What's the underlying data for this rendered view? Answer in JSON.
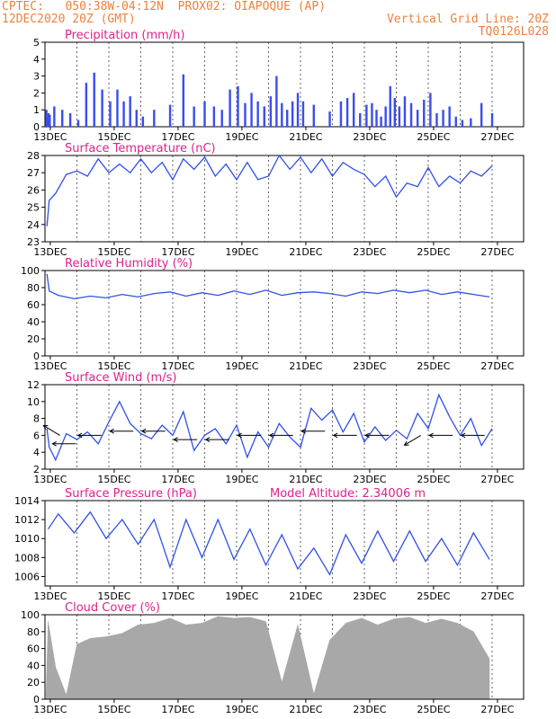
{
  "header": {
    "line1_left": "CPTEC:   050:38W-04:12N  PROX02: OIAPOQUE (AP)",
    "line2_left": "12DEC2020 20Z (GMT)",
    "line2_right": "Vertical Grid Line: 20Z",
    "line3_right": "TQ0126L028"
  },
  "colors": {
    "header": "#f0803c",
    "title": "#e0208c",
    "series": "#3050e8",
    "bars": "#3a4cf0",
    "cloud": "#a8a8a8"
  },
  "x_axis": {
    "tick_labels": [
      "13DEC",
      "15DEC",
      "17DEC",
      "19DEC",
      "21DEC",
      "23DEC",
      "25DEC",
      "27DEC"
    ],
    "start": "12DEC2020 20Z",
    "end": "27DEC2020 00Z"
  },
  "chart_data": [
    {
      "type": "bar",
      "title": "Precipitation (mm/h)",
      "unit": "mm/h",
      "ylim": [
        0,
        5
      ],
      "yticks": [
        "0",
        "1",
        "2",
        "3",
        "4",
        "5"
      ],
      "points": [
        [
          "12DEC",
          1.0
        ],
        [
          "12DEC",
          0.6
        ],
        [
          "12DEC",
          0.8
        ],
        [
          "12DEC",
          0.7
        ],
        [
          "13DEC",
          1.2
        ],
        [
          "13DEC",
          1.0
        ],
        [
          "13DEC",
          0.8
        ],
        [
          "13DEC",
          0.4
        ],
        [
          "14DEC",
          2.6
        ],
        [
          "14DEC",
          3.2
        ],
        [
          "14DEC",
          2.2
        ],
        [
          "14DEC",
          1.5
        ],
        [
          "15DEC",
          2.2
        ],
        [
          "15DEC",
          1.5
        ],
        [
          "15DEC",
          1.8
        ],
        [
          "15DEC",
          1.0
        ],
        [
          "15DEC",
          0.6
        ],
        [
          "16DEC",
          1.0
        ],
        [
          "16DEC",
          1.3
        ],
        [
          "17DEC",
          3.1
        ],
        [
          "17DEC",
          1.2
        ],
        [
          "17DEC",
          1.5
        ],
        [
          "18DEC",
          1.2
        ],
        [
          "18DEC",
          1.0
        ],
        [
          "18DEC",
          2.2
        ],
        [
          "18DEC",
          2.4
        ],
        [
          "19DEC",
          1.4
        ],
        [
          "19DEC",
          2.0
        ],
        [
          "19DEC",
          1.5
        ],
        [
          "19DEC",
          1.2
        ],
        [
          "19DEC",
          1.8
        ],
        [
          "20DEC",
          3.0
        ],
        [
          "20DEC",
          1.4
        ],
        [
          "20DEC",
          1.0
        ],
        [
          "20DEC",
          1.5
        ],
        [
          "20DEC",
          2.0
        ],
        [
          "20DEC",
          1.5
        ],
        [
          "21DEC",
          1.3
        ],
        [
          "21DEC",
          0.9
        ],
        [
          "22DEC",
          1.5
        ],
        [
          "22DEC",
          1.7
        ],
        [
          "22DEC",
          2.0
        ],
        [
          "22DEC",
          0.8
        ],
        [
          "22DEC",
          1.3
        ],
        [
          "23DEC",
          1.4
        ],
        [
          "23DEC",
          1.0
        ],
        [
          "23DEC",
          0.6
        ],
        [
          "23DEC",
          1.2
        ],
        [
          "23DEC",
          2.4
        ],
        [
          "23DEC",
          1.7
        ],
        [
          "23DEC",
          1.2
        ],
        [
          "24DEC",
          1.8
        ],
        [
          "24DEC",
          1.4
        ],
        [
          "24DEC",
          1.0
        ],
        [
          "24DEC",
          1.6
        ],
        [
          "24DEC",
          2.0
        ],
        [
          "25DEC",
          0.8
        ],
        [
          "25DEC",
          1.0
        ],
        [
          "25DEC",
          1.2
        ],
        [
          "25DEC",
          0.6
        ],
        [
          "25DEC",
          0.4
        ],
        [
          "26DEC",
          0.5
        ],
        [
          "26DEC",
          1.4
        ],
        [
          "26DEC",
          0.8
        ]
      ]
    },
    {
      "type": "line",
      "title": "Surface Temperature (nC)",
      "unit": "C",
      "ylim": [
        23,
        28
      ],
      "yticks": [
        "23",
        "24",
        "25",
        "26",
        "27",
        "28"
      ],
      "points": [
        [
          "12DEC",
          23.9
        ],
        [
          "12DEC",
          25.4
        ],
        [
          "13DEC",
          25.8
        ],
        [
          "13DEC",
          26.9
        ],
        [
          "13DEC",
          27.1
        ],
        [
          "14DEC",
          26.8
        ],
        [
          "14DEC",
          27.8
        ],
        [
          "14DEC",
          27.0
        ],
        [
          "15DEC",
          27.5
        ],
        [
          "15DEC",
          27.0
        ],
        [
          "15DEC",
          27.8
        ],
        [
          "16DEC",
          27.0
        ],
        [
          "16DEC",
          27.6
        ],
        [
          "16DEC",
          26.6
        ],
        [
          "17DEC",
          27.8
        ],
        [
          "17DEC",
          27.2
        ],
        [
          "17DEC",
          27.9
        ],
        [
          "18DEC",
          26.8
        ],
        [
          "18DEC",
          27.5
        ],
        [
          "18DEC",
          26.6
        ],
        [
          "19DEC",
          27.6
        ],
        [
          "19DEC",
          26.6
        ],
        [
          "19DEC",
          26.8
        ],
        [
          "20DEC",
          28.0
        ],
        [
          "20DEC",
          27.2
        ],
        [
          "20DEC",
          27.9
        ],
        [
          "21DEC",
          27.0
        ],
        [
          "21DEC",
          27.8
        ],
        [
          "21DEC",
          26.8
        ],
        [
          "22DEC",
          27.6
        ],
        [
          "22DEC",
          27.2
        ],
        [
          "22DEC",
          26.9
        ],
        [
          "23DEC",
          26.2
        ],
        [
          "23DEC",
          26.8
        ],
        [
          "23DEC",
          25.6
        ],
        [
          "24DEC",
          26.4
        ],
        [
          "24DEC",
          26.2
        ],
        [
          "24DEC",
          27.3
        ],
        [
          "25DEC",
          26.2
        ],
        [
          "25DEC",
          26.8
        ],
        [
          "25DEC",
          26.4
        ],
        [
          "26DEC",
          27.1
        ],
        [
          "26DEC",
          26.8
        ],
        [
          "26DEC",
          27.4
        ]
      ]
    },
    {
      "type": "line",
      "title": "Relative Humidity (%)",
      "unit": "%",
      "ylim": [
        0,
        100
      ],
      "yticks": [
        "0",
        "20",
        "40",
        "60",
        "80",
        "100"
      ],
      "points": [
        [
          "12DEC",
          96
        ],
        [
          "12DEC",
          76
        ],
        [
          "13DEC",
          71
        ],
        [
          "13DEC",
          67
        ],
        [
          "14DEC",
          70
        ],
        [
          "14DEC",
          68
        ],
        [
          "15DEC",
          72
        ],
        [
          "15DEC",
          69
        ],
        [
          "16DEC",
          73
        ],
        [
          "16DEC",
          75
        ],
        [
          "17DEC",
          70
        ],
        [
          "17DEC",
          74
        ],
        [
          "18DEC",
          71
        ],
        [
          "18DEC",
          76
        ],
        [
          "19DEC",
          72
        ],
        [
          "19DEC",
          77
        ],
        [
          "20DEC",
          71
        ],
        [
          "20DEC",
          74
        ],
        [
          "21DEC",
          75
        ],
        [
          "21DEC",
          73
        ],
        [
          "22DEC",
          70
        ],
        [
          "22DEC",
          75
        ],
        [
          "23DEC",
          73
        ],
        [
          "23DEC",
          77
        ],
        [
          "24DEC",
          74
        ],
        [
          "24DEC",
          77
        ],
        [
          "25DEC",
          72
        ],
        [
          "25DEC",
          75
        ],
        [
          "26DEC",
          72
        ],
        [
          "26DEC",
          69
        ]
      ]
    },
    {
      "type": "line",
      "title": "Surface Wind (m/s)",
      "unit": "m/s",
      "ylim": [
        2,
        12
      ],
      "yticks": [
        "2",
        "4",
        "6",
        "8",
        "10",
        "12"
      ],
      "points": [
        [
          "12DEC",
          6.8
        ],
        [
          "12DEC",
          4.6
        ],
        [
          "13DEC",
          3.1
        ],
        [
          "13DEC",
          6.2
        ],
        [
          "13DEC",
          5.5
        ],
        [
          "14DEC",
          6.4
        ],
        [
          "14DEC",
          5.0
        ],
        [
          "14DEC",
          7.6
        ],
        [
          "15DEC",
          10.0
        ],
        [
          "15DEC",
          7.4
        ],
        [
          "15DEC",
          6.2
        ],
        [
          "16DEC",
          5.6
        ],
        [
          "16DEC",
          7.2
        ],
        [
          "16DEC",
          6.0
        ],
        [
          "17DEC",
          8.8
        ],
        [
          "17DEC",
          4.2
        ],
        [
          "17DEC",
          6.0
        ],
        [
          "18DEC",
          6.8
        ],
        [
          "18DEC",
          5.0
        ],
        [
          "18DEC",
          7.2
        ],
        [
          "19DEC",
          3.4
        ],
        [
          "19DEC",
          6.4
        ],
        [
          "19DEC",
          4.6
        ],
        [
          "20DEC",
          7.4
        ],
        [
          "20DEC",
          5.8
        ],
        [
          "20DEC",
          4.6
        ],
        [
          "21DEC",
          9.2
        ],
        [
          "21DEC",
          7.8
        ],
        [
          "21DEC",
          9.0
        ],
        [
          "22DEC",
          6.4
        ],
        [
          "22DEC",
          8.6
        ],
        [
          "22DEC",
          5.2
        ],
        [
          "23DEC",
          7.0
        ],
        [
          "23DEC",
          5.4
        ],
        [
          "23DEC",
          6.6
        ],
        [
          "24DEC",
          5.6
        ],
        [
          "24DEC",
          8.6
        ],
        [
          "24DEC",
          6.8
        ],
        [
          "25DEC",
          10.8
        ],
        [
          "25DEC",
          8.2
        ],
        [
          "25DEC",
          6.0
        ],
        [
          "26DEC",
          8.0
        ],
        [
          "26DEC",
          4.8
        ],
        [
          "26DEC",
          6.8
        ]
      ],
      "wind_arrows": [
        {
          "date": "13DEC",
          "speed": 6,
          "direction": "NW"
        },
        {
          "date": "13DEC",
          "speed": 5,
          "direction": "W"
        },
        {
          "date": "14DEC",
          "speed": 6,
          "direction": "W"
        },
        {
          "date": "15DEC",
          "speed": 6.5,
          "direction": "W"
        },
        {
          "date": "16DEC",
          "speed": 6.5,
          "direction": "W"
        },
        {
          "date": "17DEC",
          "speed": 5.5,
          "direction": "W"
        },
        {
          "date": "18DEC",
          "speed": 5.5,
          "direction": "W"
        },
        {
          "date": "19DEC",
          "speed": 6,
          "direction": "W"
        },
        {
          "date": "20DEC",
          "speed": 6,
          "direction": "W"
        },
        {
          "date": "21DEC",
          "speed": 6.5,
          "direction": "W"
        },
        {
          "date": "22DEC",
          "speed": 6,
          "direction": "W"
        },
        {
          "date": "23DEC",
          "speed": 6,
          "direction": "W"
        },
        {
          "date": "24DEC",
          "speed": 6,
          "direction": "SW"
        },
        {
          "date": "25DEC",
          "speed": 6,
          "direction": "W"
        },
        {
          "date": "26DEC",
          "speed": 6,
          "direction": "W"
        }
      ]
    },
    {
      "type": "line",
      "title": "Surface Pressure (hPa)",
      "annotation": "Model Altitude: 2.34006 m",
      "unit": "hPa",
      "ylim": [
        1005,
        1014
      ],
      "yticks": [
        "1006",
        "1008",
        "1010",
        "1012",
        "1014"
      ],
      "points": [
        [
          "12DEC",
          1011.0
        ],
        [
          "13DEC",
          1012.6
        ],
        [
          "13DEC",
          1010.6
        ],
        [
          "14DEC",
          1012.8
        ],
        [
          "14DEC",
          1010.0
        ],
        [
          "15DEC",
          1012.0
        ],
        [
          "15DEC",
          1009.4
        ],
        [
          "16DEC",
          1012.0
        ],
        [
          "16DEC",
          1007.0
        ],
        [
          "17DEC",
          1012.0
        ],
        [
          "17DEC",
          1008.0
        ],
        [
          "18DEC",
          1012.0
        ],
        [
          "18DEC",
          1007.8
        ],
        [
          "19DEC",
          1011.0
        ],
        [
          "19DEC",
          1007.2
        ],
        [
          "20DEC",
          1010.4
        ],
        [
          "20DEC",
          1006.8
        ],
        [
          "21DEC",
          1009.0
        ],
        [
          "21DEC",
          1006.2
        ],
        [
          "22DEC",
          1010.4
        ],
        [
          "22DEC",
          1007.4
        ],
        [
          "23DEC",
          1010.8
        ],
        [
          "23DEC",
          1007.6
        ],
        [
          "24DEC",
          1010.8
        ],
        [
          "24DEC",
          1007.6
        ],
        [
          "25DEC",
          1010.0
        ],
        [
          "25DEC",
          1007.2
        ],
        [
          "26DEC",
          1010.6
        ],
        [
          "26DEC",
          1007.8
        ]
      ]
    },
    {
      "type": "area",
      "title": "Cloud Cover (%)",
      "unit": "%",
      "ylim": [
        0,
        100
      ],
      "yticks": [
        "0",
        "20",
        "40",
        "60",
        "80",
        "100"
      ],
      "points": [
        [
          "12DEC",
          92
        ],
        [
          "13DEC",
          38
        ],
        [
          "13DEC",
          5
        ],
        [
          "13DEC",
          65
        ],
        [
          "14DEC",
          72
        ],
        [
          "14DEC",
          74
        ],
        [
          "15DEC",
          78
        ],
        [
          "15DEC",
          88
        ],
        [
          "16DEC",
          90
        ],
        [
          "16DEC",
          96
        ],
        [
          "17DEC",
          88
        ],
        [
          "17DEC",
          90
        ],
        [
          "18DEC",
          98
        ],
        [
          "18DEC",
          96
        ],
        [
          "19DEC",
          97
        ],
        [
          "19DEC",
          92
        ],
        [
          "20DEC",
          20
        ],
        [
          "20DEC",
          88
        ],
        [
          "21DEC",
          6
        ],
        [
          "21DEC",
          70
        ],
        [
          "22DEC",
          90
        ],
        [
          "22DEC",
          96
        ],
        [
          "23DEC",
          88
        ],
        [
          "23DEC",
          95
        ],
        [
          "24DEC",
          97
        ],
        [
          "24DEC",
          90
        ],
        [
          "25DEC",
          95
        ],
        [
          "25DEC",
          90
        ],
        [
          "26DEC",
          80
        ],
        [
          "26DEC",
          48
        ]
      ]
    }
  ]
}
